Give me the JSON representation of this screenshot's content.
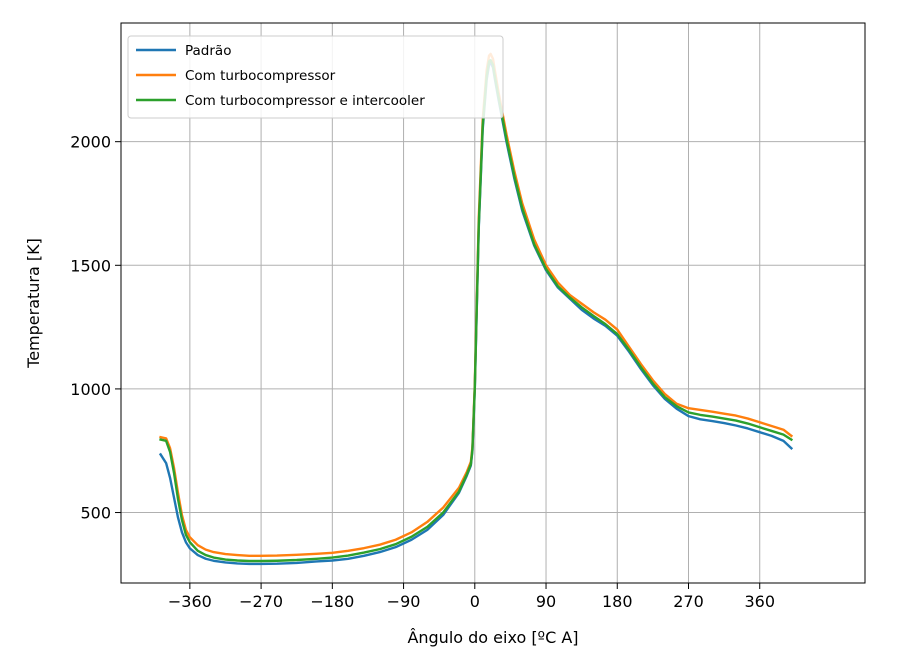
{
  "chart_data": {
    "type": "line",
    "xlabel": "Ângulo do eixo [ºC A]",
    "ylabel": "Temperatura [K]",
    "xlim": [
      -447,
      493
    ],
    "ylim": [
      215,
      2480
    ],
    "xticks": [
      -360,
      -270,
      -180,
      -90,
      0,
      90,
      180,
      270,
      360
    ],
    "xtick_labels": [
      "−360",
      "−270",
      "−180",
      "−90",
      "0",
      "90",
      "180",
      "270",
      "360"
    ],
    "yticks": [
      500,
      1000,
      1500,
      2000
    ],
    "ytick_labels": [
      "500",
      "1000",
      "1500",
      "2000"
    ],
    "grid": true,
    "legend_position": "top-left",
    "series": [
      {
        "name": "Padrão",
        "color": "#1f77b4",
        "x": [
          -397,
          -390,
          -385,
          -380,
          -375,
          -370,
          -365,
          -360,
          -350,
          -340,
          -330,
          -315,
          -300,
          -285,
          -270,
          -250,
          -225,
          -200,
          -180,
          -160,
          -140,
          -120,
          -100,
          -80,
          -60,
          -40,
          -20,
          -10,
          -5,
          -3,
          0,
          5,
          10,
          15,
          18,
          20,
          23,
          25,
          30,
          40,
          50,
          60,
          75,
          90,
          105,
          120,
          135,
          150,
          165,
          180,
          195,
          210,
          225,
          240,
          255,
          270,
          285,
          300,
          315,
          330,
          345,
          360,
          375,
          390,
          400
        ],
        "y": [
          735,
          700,
          640,
          560,
          480,
          420,
          380,
          355,
          328,
          313,
          305,
          298,
          294,
          292,
          292,
          293,
          296,
          302,
          306,
          313,
          325,
          340,
          360,
          390,
          430,
          490,
          580,
          650,
          690,
          750,
          1000,
          1650,
          2050,
          2250,
          2310,
          2320,
          2300,
          2260,
          2170,
          2000,
          1850,
          1720,
          1580,
          1480,
          1410,
          1365,
          1320,
          1285,
          1255,
          1215,
          1150,
          1080,
          1015,
          960,
          920,
          890,
          877,
          870,
          862,
          852,
          840,
          825,
          810,
          790,
          760
        ]
      },
      {
        "name": "Com turbocompressor",
        "color": "#ff7f0e",
        "x": [
          -397,
          -390,
          -385,
          -380,
          -375,
          -370,
          -365,
          -360,
          -350,
          -340,
          -330,
          -315,
          -300,
          -285,
          -270,
          -250,
          -225,
          -200,
          -180,
          -160,
          -140,
          -120,
          -100,
          -80,
          -60,
          -40,
          -20,
          -10,
          -5,
          -3,
          0,
          5,
          10,
          15,
          18,
          20,
          23,
          25,
          30,
          40,
          50,
          60,
          75,
          90,
          105,
          120,
          135,
          150,
          165,
          180,
          195,
          210,
          225,
          240,
          255,
          270,
          285,
          300,
          315,
          330,
          345,
          360,
          375,
          390,
          400
        ],
        "y": [
          805,
          800,
          760,
          680,
          580,
          490,
          430,
          400,
          368,
          350,
          340,
          332,
          328,
          325,
          325,
          326,
          329,
          333,
          337,
          345,
          356,
          370,
          390,
          420,
          462,
          520,
          600,
          665,
          705,
          765,
          1020,
          1690,
          2090,
          2290,
          2348,
          2355,
          2335,
          2295,
          2200,
          2030,
          1880,
          1750,
          1605,
          1500,
          1430,
          1380,
          1345,
          1310,
          1280,
          1240,
          1170,
          1100,
          1035,
          980,
          940,
          922,
          915,
          908,
          900,
          892,
          880,
          865,
          850,
          835,
          810
        ]
      },
      {
        "name": "Com turbocompressor e intercooler",
        "color": "#2ca02c",
        "x": [
          -397,
          -390,
          -385,
          -380,
          -375,
          -370,
          -365,
          -360,
          -350,
          -340,
          -330,
          -315,
          -300,
          -285,
          -270,
          -250,
          -225,
          -200,
          -180,
          -160,
          -140,
          -120,
          -100,
          -80,
          -60,
          -40,
          -20,
          -10,
          -5,
          -3,
          0,
          5,
          10,
          15,
          18,
          20,
          23,
          25,
          30,
          40,
          50,
          60,
          75,
          90,
          105,
          120,
          135,
          150,
          165,
          180,
          195,
          210,
          225,
          240,
          255,
          270,
          285,
          300,
          315,
          330,
          345,
          360,
          375,
          390,
          400
        ],
        "y": [
          795,
          790,
          745,
          660,
          555,
          470,
          410,
          380,
          345,
          328,
          318,
          310,
          306,
          304,
          304,
          305,
          308,
          313,
          318,
          326,
          338,
          352,
          372,
          402,
          442,
          500,
          585,
          655,
          695,
          755,
          1005,
          1660,
          2065,
          2265,
          2325,
          2330,
          2310,
          2270,
          2180,
          2010,
          1860,
          1730,
          1585,
          1485,
          1415,
          1370,
          1330,
          1295,
          1262,
          1222,
          1157,
          1087,
          1022,
          967,
          930,
          905,
          895,
          888,
          880,
          872,
          860,
          845,
          830,
          815,
          795
        ]
      }
    ]
  }
}
